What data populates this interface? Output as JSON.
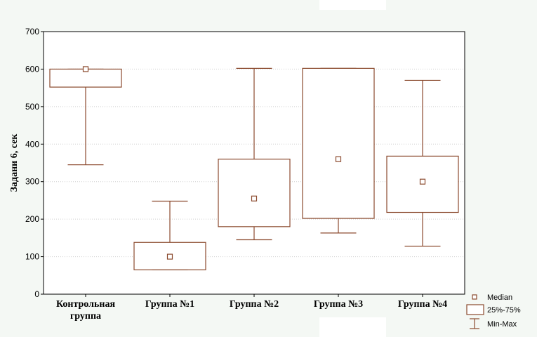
{
  "chart_data": {
    "type": "box",
    "ylabel": "Задани 6, сек",
    "ylim": [
      0,
      700
    ],
    "yticks": [
      0,
      100,
      200,
      300,
      400,
      500,
      600,
      700
    ],
    "grid": true,
    "stroke_color": "#8b4a2e",
    "grid_color": "#d0d0d0",
    "categories": [
      [
        "Контрольная",
        "группа"
      ],
      [
        "Группа №1"
      ],
      [
        "Группа №2"
      ],
      [
        "Группа №3"
      ],
      [
        "Группа №4"
      ]
    ],
    "boxes": [
      {
        "min": 345,
        "q1": 552,
        "median": 600,
        "q3": 600,
        "max": 600
      },
      {
        "min": 65,
        "q1": 65,
        "median": 100,
        "q3": 138,
        "max": 248
      },
      {
        "min": 145,
        "q1": 180,
        "median": 255,
        "q3": 360,
        "max": 602
      },
      {
        "min": 163,
        "q1": 202,
        "median": 360,
        "q3": 602,
        "max": 602
      },
      {
        "min": 128,
        "q1": 218,
        "median": 300,
        "q3": 368,
        "max": 570
      }
    ],
    "legend": {
      "position": "bottom-right",
      "items": [
        "Median",
        "25%-75%",
        "Min-Max"
      ]
    }
  }
}
